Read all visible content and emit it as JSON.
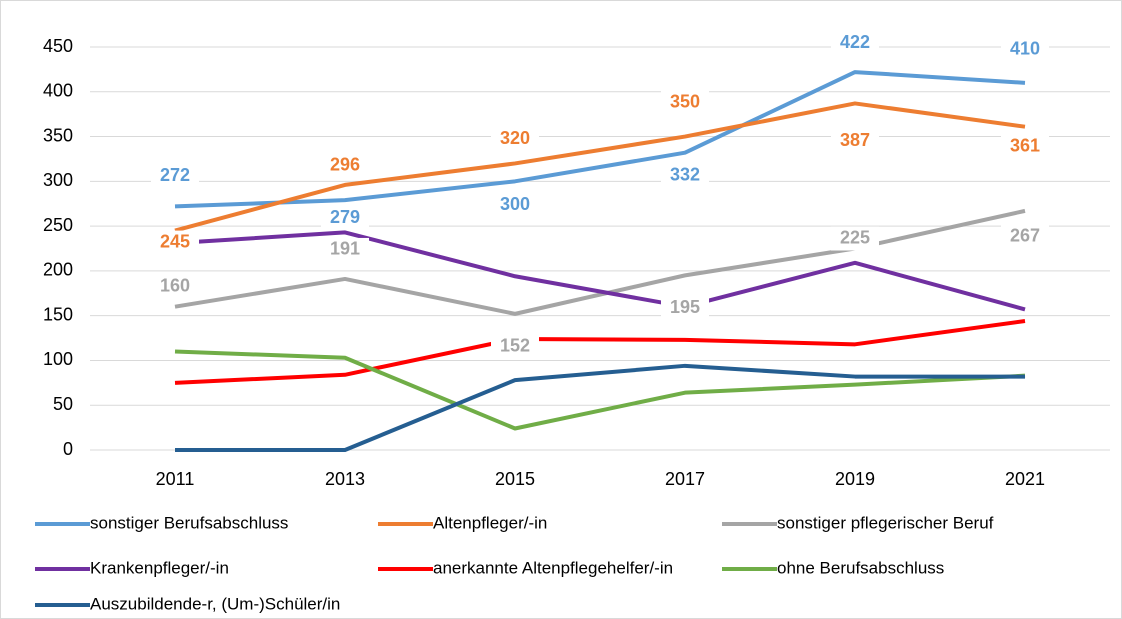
{
  "chart_data": {
    "type": "line",
    "categories": [
      "2011",
      "2013",
      "2015",
      "2017",
      "2019",
      "2021"
    ],
    "ylim": [
      0,
      450
    ],
    "yticks": [
      0,
      50,
      100,
      150,
      200,
      250,
      300,
      350,
      400,
      450
    ],
    "grid": true,
    "data_labels_series": [
      0,
      1,
      2
    ],
    "series": [
      {
        "name": "sonstiger Berufsabschluss",
        "color": "#5b9bd5",
        "values": [
          272,
          279,
          300,
          332,
          422,
          410
        ]
      },
      {
        "name": "Altenpfleger/-in",
        "color": "#ed7d31",
        "values": [
          245,
          296,
          320,
          350,
          387,
          361
        ]
      },
      {
        "name": "sonstiger pflegerischer Beruf",
        "color": "#a5a5a5",
        "values": [
          160,
          191,
          152,
          195,
          225,
          267
        ]
      },
      {
        "name": "Krankenpfleger/-in",
        "color": "#7030a0",
        "values": [
          231,
          243,
          194,
          160,
          209,
          157
        ]
      },
      {
        "name": "anerkannte Altenpflegehelfer/-in",
        "color": "#ff0000",
        "values": [
          75,
          84,
          124,
          123,
          118,
          144
        ]
      },
      {
        "name": "ohne Berufsabschluss",
        "color": "#70ad47",
        "values": [
          110,
          103,
          24,
          64,
          73,
          83
        ]
      },
      {
        "name": "Auszubildende-r, (Um-)Schüler/in",
        "color": "#255e91",
        "values": [
          0,
          0,
          78,
          94,
          82,
          82
        ]
      }
    ]
  }
}
